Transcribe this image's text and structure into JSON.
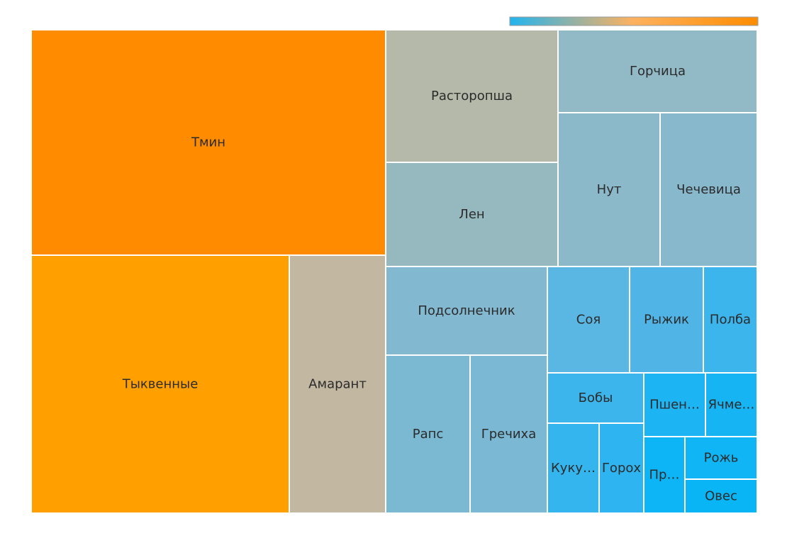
{
  "chart_data": {
    "type": "treemap",
    "colorscale": [
      "#22b4ee",
      "#ffb15e",
      "#ff8c00"
    ],
    "items": [
      {
        "label": "Тмин",
        "value": 16.1,
        "display": "Тмин",
        "color": "#ff8c00"
      },
      {
        "label": "Тыквенные",
        "value": 13.4,
        "display": "Тыквенные",
        "color": "#ffa000"
      },
      {
        "label": "Амарант",
        "value": 5.0,
        "display": "Амарант",
        "color": "#c2b8a2"
      },
      {
        "label": "Расторопша",
        "value": 4.5,
        "display": "Расторопша",
        "color": "#b4b9aa"
      },
      {
        "label": "Лен",
        "value": 3.6,
        "display": "Лен",
        "color": "#96b8bf"
      },
      {
        "label": "Горчица",
        "value": 3.5,
        "display": "Горчица",
        "color": "#92bac6"
      },
      {
        "label": "Нут",
        "value": 2.7,
        "display": "Нут",
        "color": "#8bb9ca"
      },
      {
        "label": "Чечевица",
        "value": 2.6,
        "display": "Чечевица",
        "color": "#88b8cc"
      },
      {
        "label": "Подсолнечник",
        "value": 2.6,
        "display": "Подсолнечник",
        "color": "#82b8d0"
      },
      {
        "label": "Рапс",
        "value": 2.4,
        "display": "Рапс",
        "color": "#7bb9d3"
      },
      {
        "label": "Гречиха",
        "value": 2.4,
        "display": "Гречиха",
        "color": "#7ab8d4"
      },
      {
        "label": "Соя",
        "value": 1.6,
        "display": "Соя",
        "color": "#5ab6e3"
      },
      {
        "label": "Рыжик",
        "value": 1.4,
        "display": "Рыжик",
        "color": "#50b5e6"
      },
      {
        "label": "Полба",
        "value": 1.4,
        "display": "Полба",
        "color": "#3cb4ec"
      },
      {
        "label": "Бобы",
        "value": 0.95,
        "display": "Бобы",
        "color": "#3cb4ec"
      },
      {
        "label": "Кукуруза",
        "value": 0.95,
        "display": "Куку…",
        "color": "#34b5ee"
      },
      {
        "label": "Горох",
        "value": 0.8,
        "display": "Горох",
        "color": "#2eb4f0"
      },
      {
        "label": "Пшеница",
        "value": 0.75,
        "display": "Пшен…",
        "color": "#1cb4f2"
      },
      {
        "label": "Ячмень",
        "value": 0.7,
        "display": "Ячме…",
        "color": "#17b4f3"
      },
      {
        "label": "Просо",
        "value": 0.55,
        "display": "Пр…",
        "color": "#0db4f6"
      },
      {
        "label": "Рожь",
        "value": 0.5,
        "display": "Рожь",
        "color": "#0fb5f4"
      },
      {
        "label": "Овес",
        "value": 0.5,
        "display": "Овес",
        "color": "#0ab5f5"
      }
    ]
  }
}
